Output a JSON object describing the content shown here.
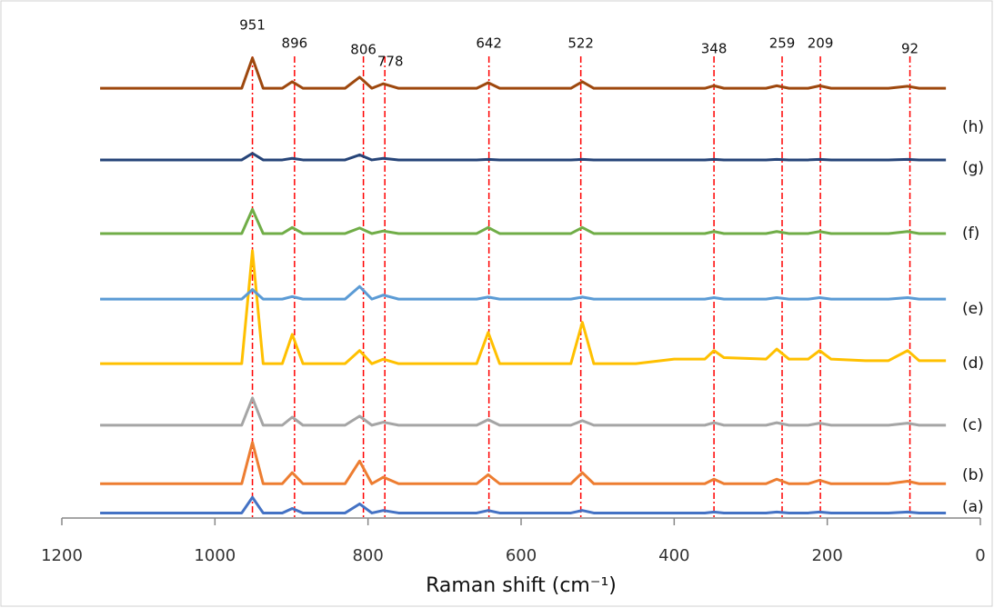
{
  "chart_data": {
    "type": "line",
    "x_label": "Raman shift (cm⁻¹)",
    "xlim": [
      1200,
      0
    ],
    "xticks": [
      1200,
      1000,
      800,
      600,
      400,
      200,
      0
    ],
    "ylim": [
      0,
      100
    ],
    "x": [
      1150,
      1000,
      965,
      951,
      937,
      912,
      899,
      885,
      830,
      811,
      795,
      780,
      760,
      700,
      658,
      643,
      628,
      550,
      535,
      520,
      505,
      450,
      400,
      360,
      348,
      335,
      280,
      266,
      250,
      225,
      210,
      195,
      150,
      120,
      95,
      80,
      45
    ],
    "series": [
      {
        "name": "(a)",
        "color": "#4472c4",
        "values": [
          1.0,
          1.0,
          1.0,
          4.1,
          1.0,
          1.0,
          1.9,
          1.0,
          1.0,
          2.8,
          1.0,
          1.5,
          1.0,
          1.0,
          1.0,
          1.5,
          1.0,
          1.0,
          1.0,
          1.5,
          1.0,
          1.0,
          1.0,
          1.0,
          1.2,
          1.0,
          1.0,
          1.2,
          1.0,
          1.0,
          1.2,
          1.0,
          1.0,
          1.0,
          1.2,
          1.0,
          1.0
        ]
      },
      {
        "name": "(b)",
        "color": "#ed7d31",
        "values": [
          6.8,
          6.8,
          6.8,
          15,
          6.8,
          6.8,
          9,
          6.8,
          6.8,
          11.3,
          6.8,
          8.1,
          6.8,
          6.8,
          6.8,
          8.6,
          6.8,
          6.8,
          6.8,
          9,
          6.8,
          6.8,
          6.8,
          6.8,
          7.7,
          6.8,
          6.8,
          7.7,
          6.8,
          6.8,
          7.5,
          6.8,
          6.8,
          6.8,
          7.3,
          6.8,
          6.8
        ]
      },
      {
        "name": "(c)",
        "color": "#a5a5a5",
        "values": [
          18.4,
          18.4,
          18.4,
          23.8,
          18.4,
          18.4,
          20,
          18.4,
          18.4,
          20.2,
          18.4,
          19,
          18.4,
          18.4,
          18.4,
          19.5,
          18.4,
          18.4,
          18.4,
          19.3,
          18.4,
          18.4,
          18.4,
          18.4,
          18.9,
          18.4,
          18.4,
          18.9,
          18.4,
          18.4,
          18.8,
          18.4,
          18.4,
          18.4,
          18.8,
          18.4,
          18.4
        ]
      },
      {
        "name": "(d)",
        "color": "#ffc000",
        "values": [
          30.6,
          30.6,
          30.6,
          53,
          30.6,
          30.6,
          36.4,
          30.6,
          30.6,
          33.2,
          30.6,
          31.5,
          30.6,
          30.6,
          30.6,
          36.8,
          30.6,
          30.6,
          30.6,
          38.8,
          30.6,
          30.6,
          31.5,
          31.5,
          33.2,
          31.8,
          31.5,
          33.5,
          31.5,
          31.5,
          33.2,
          31.5,
          31.2,
          31.2,
          33.2,
          31.2,
          31.2
        ]
      },
      {
        "name": "(e)",
        "color": "#5b9bd5",
        "values": [
          43.4,
          43.4,
          43.4,
          45.3,
          43.4,
          43.4,
          43.9,
          43.4,
          43.4,
          45.9,
          43.4,
          44.2,
          43.4,
          43.4,
          43.4,
          43.8,
          43.4,
          43.4,
          43.4,
          43.8,
          43.4,
          43.4,
          43.4,
          43.4,
          43.7,
          43.4,
          43.4,
          43.7,
          43.4,
          43.4,
          43.7,
          43.4,
          43.4,
          43.4,
          43.7,
          43.4,
          43.4
        ]
      },
      {
        "name": "(f)",
        "color": "#70ad47",
        "values": [
          56.4,
          56.4,
          56.4,
          61.2,
          56.4,
          56.4,
          57.6,
          56.4,
          56.4,
          57.5,
          56.4,
          56.9,
          56.4,
          56.4,
          56.4,
          57.6,
          56.4,
          56.4,
          56.4,
          57.6,
          56.4,
          56.4,
          56.4,
          56.4,
          56.8,
          56.4,
          56.4,
          56.8,
          56.4,
          56.4,
          56.8,
          56.4,
          56.4,
          56.4,
          56.8,
          56.4,
          56.4
        ]
      },
      {
        "name": "(g)",
        "color": "#264478",
        "values": [
          71,
          71,
          71,
          72.3,
          71,
          71,
          71.3,
          71,
          71,
          72,
          71,
          71.3,
          71,
          71,
          71,
          71.1,
          71,
          71,
          71,
          71.1,
          71,
          71,
          71,
          71,
          71.1,
          71,
          71,
          71.1,
          71,
          71,
          71.1,
          71,
          71,
          71,
          71.1,
          71,
          71
        ]
      },
      {
        "name": "(h)",
        "color": "#9e480e",
        "values": [
          85.2,
          85.2,
          85.2,
          91.2,
          85.2,
          85.2,
          86.5,
          85.2,
          85.2,
          87.4,
          85.2,
          86.1,
          85.2,
          85.2,
          85.2,
          86.3,
          85.2,
          85.2,
          85.2,
          86.5,
          85.2,
          85.2,
          85.2,
          85.2,
          85.7,
          85.2,
          85.2,
          85.7,
          85.2,
          85.2,
          85.7,
          85.2,
          85.2,
          85.2,
          85.6,
          85.2,
          85.2
        ]
      }
    ],
    "reference_lines": [
      951,
      896,
      806,
      778,
      642,
      522,
      348,
      259,
      209,
      92
    ],
    "reference_color": "#ff0000"
  }
}
